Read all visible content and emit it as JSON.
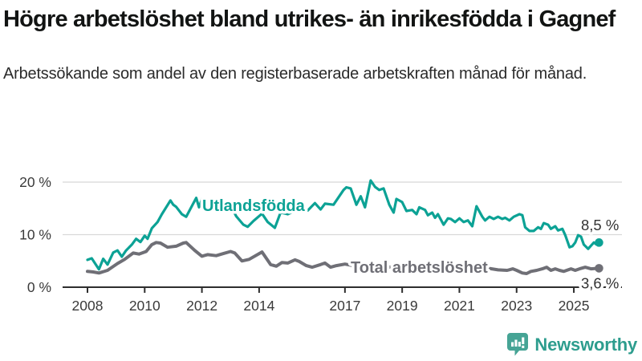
{
  "header": {
    "title": "Högre arbetslöshet bland utrikes- än inrikesfödda i Gagnef",
    "subtitle": "Arbetssökande som andel av den registerbaserade arbetskraften månad för månad."
  },
  "footer": {
    "brand": "Newsworthy"
  },
  "colors": {
    "grid": "#d8d8d8",
    "axis": "#2e2e2e",
    "tick_label": "#3a3a3a",
    "value_label": "#333333",
    "brand_icon": "#46a495",
    "brand_text": "#2d9d8e"
  },
  "chart_data": {
    "type": "line",
    "title": "Högre arbetslöshet bland utrikes- än inrikesfödda i Gagnef",
    "xlabel": "",
    "ylabel": "",
    "xlim": [
      2008,
      2026
    ],
    "ylim": [
      0,
      20
    ],
    "grid": "horizontal",
    "legend_position": "inline-labels",
    "x_ticks": [
      {
        "year": 2008,
        "label": "2008"
      },
      {
        "year": 2010,
        "label": "2010"
      },
      {
        "year": 2012,
        "label": "2012"
      },
      {
        "year": 2014,
        "label": "2014"
      },
      {
        "year": 2017,
        "label": "2017"
      },
      {
        "year": 2019,
        "label": "2019"
      },
      {
        "year": 2021,
        "label": "2021"
      },
      {
        "year": 2023,
        "label": "2023"
      },
      {
        "year": 2025,
        "label": "2025"
      }
    ],
    "y_ticks": [
      {
        "value": 0,
        "label": "0 %"
      },
      {
        "value": 10,
        "label": "10 %"
      },
      {
        "value": 20,
        "label": "20 %"
      }
    ],
    "series": [
      {
        "id": "utlandsfodda",
        "name": "Utlandsfödda",
        "color": "#0ca295",
        "end_label": "8,5 %",
        "end_value": 8.5,
        "points": [
          [
            2008.0,
            5.2
          ],
          [
            2008.15,
            5.5
          ],
          [
            2008.4,
            3.4
          ],
          [
            2008.55,
            5.4
          ],
          [
            2008.7,
            4.3
          ],
          [
            2008.9,
            6.6
          ],
          [
            2009.05,
            7.0
          ],
          [
            2009.2,
            5.8
          ],
          [
            2009.35,
            7.0
          ],
          [
            2009.55,
            8.1
          ],
          [
            2009.7,
            9.2
          ],
          [
            2009.85,
            8.6
          ],
          [
            2010.0,
            9.8
          ],
          [
            2010.1,
            9.2
          ],
          [
            2010.25,
            11.2
          ],
          [
            2010.45,
            12.4
          ],
          [
            2010.6,
            13.9
          ],
          [
            2010.9,
            16.5
          ],
          [
            2011.0,
            15.7
          ],
          [
            2011.1,
            15.3
          ],
          [
            2011.3,
            13.9
          ],
          [
            2011.45,
            13.4
          ],
          [
            2011.8,
            17.0
          ],
          [
            2011.9,
            15.2
          ],
          [
            2012.0,
            16.8
          ],
          [
            2012.15,
            15.0
          ],
          [
            2012.35,
            14.6
          ],
          [
            2012.6,
            15.3
          ],
          [
            2012.95,
            16.1
          ],
          [
            2013.2,
            13.5
          ],
          [
            2013.45,
            11.9
          ],
          [
            2013.6,
            11.5
          ],
          [
            2013.8,
            12.6
          ],
          [
            2014.1,
            14.0
          ],
          [
            2014.3,
            12.4
          ],
          [
            2014.55,
            11.3
          ],
          [
            2014.75,
            14.2
          ],
          [
            2015.0,
            13.9
          ],
          [
            2015.2,
            14.4
          ],
          [
            2015.5,
            14.9
          ],
          [
            2015.7,
            14.6
          ],
          [
            2015.95,
            16.0
          ],
          [
            2016.15,
            14.8
          ],
          [
            2016.3,
            15.9
          ],
          [
            2016.6,
            15.7
          ],
          [
            2016.95,
            18.5
          ],
          [
            2017.05,
            19.0
          ],
          [
            2017.2,
            18.8
          ],
          [
            2017.4,
            15.7
          ],
          [
            2017.55,
            17.3
          ],
          [
            2017.7,
            15.2
          ],
          [
            2017.9,
            20.3
          ],
          [
            2018.05,
            19.1
          ],
          [
            2018.2,
            18.5
          ],
          [
            2018.35,
            18.8
          ],
          [
            2018.55,
            15.7
          ],
          [
            2018.7,
            14.2
          ],
          [
            2018.8,
            16.8
          ],
          [
            2019.0,
            16.2
          ],
          [
            2019.15,
            14.5
          ],
          [
            2019.35,
            14.7
          ],
          [
            2019.5,
            13.9
          ],
          [
            2019.6,
            15.2
          ],
          [
            2019.8,
            14.7
          ],
          [
            2019.9,
            13.7
          ],
          [
            2020.05,
            14.2
          ],
          [
            2020.15,
            13.2
          ],
          [
            2020.25,
            13.9
          ],
          [
            2020.45,
            11.9
          ],
          [
            2020.6,
            13.1
          ],
          [
            2020.7,
            13.0
          ],
          [
            2020.85,
            12.4
          ],
          [
            2021.0,
            13.1
          ],
          [
            2021.15,
            12.4
          ],
          [
            2021.3,
            12.7
          ],
          [
            2021.45,
            11.6
          ],
          [
            2021.6,
            15.4
          ],
          [
            2021.8,
            13.4
          ],
          [
            2021.9,
            12.7
          ],
          [
            2022.05,
            13.4
          ],
          [
            2022.2,
            13.0
          ],
          [
            2022.35,
            13.4
          ],
          [
            2022.5,
            13.0
          ],
          [
            2022.6,
            13.2
          ],
          [
            2022.75,
            12.7
          ],
          [
            2022.9,
            13.4
          ],
          [
            2023.1,
            13.9
          ],
          [
            2023.2,
            13.7
          ],
          [
            2023.3,
            11.4
          ],
          [
            2023.45,
            10.7
          ],
          [
            2023.6,
            10.7
          ],
          [
            2023.75,
            11.4
          ],
          [
            2023.85,
            11.1
          ],
          [
            2023.95,
            12.2
          ],
          [
            2024.1,
            11.9
          ],
          [
            2024.2,
            11.1
          ],
          [
            2024.35,
            11.6
          ],
          [
            2024.45,
            10.8
          ],
          [
            2024.6,
            11.1
          ],
          [
            2024.7,
            9.9
          ],
          [
            2024.85,
            7.6
          ],
          [
            2024.95,
            7.8
          ],
          [
            2025.05,
            8.5
          ],
          [
            2025.15,
            9.9
          ],
          [
            2025.25,
            9.6
          ],
          [
            2025.35,
            8.1
          ],
          [
            2025.5,
            7.3
          ],
          [
            2025.55,
            7.6
          ],
          [
            2025.7,
            8.5
          ],
          [
            2025.8,
            8.1
          ],
          [
            2025.88,
            8.5
          ]
        ]
      },
      {
        "id": "total-arbetsloshet",
        "name": "Total arbetslöshet",
        "color": "#6f6f76",
        "end_label": "3,6 %",
        "end_value": 3.6,
        "points": [
          [
            2008.0,
            3.0
          ],
          [
            2008.2,
            2.9
          ],
          [
            2008.4,
            2.7
          ],
          [
            2008.7,
            3.2
          ],
          [
            2009.05,
            4.5
          ],
          [
            2009.3,
            5.3
          ],
          [
            2009.6,
            6.5
          ],
          [
            2009.8,
            6.3
          ],
          [
            2010.05,
            6.8
          ],
          [
            2010.25,
            8.1
          ],
          [
            2010.4,
            8.5
          ],
          [
            2010.55,
            8.4
          ],
          [
            2010.8,
            7.6
          ],
          [
            2011.1,
            7.8
          ],
          [
            2011.35,
            8.4
          ],
          [
            2011.45,
            8.5
          ],
          [
            2011.75,
            7.0
          ],
          [
            2012.0,
            5.9
          ],
          [
            2012.2,
            6.2
          ],
          [
            2012.5,
            6.0
          ],
          [
            2012.75,
            6.4
          ],
          [
            2013.0,
            6.8
          ],
          [
            2013.15,
            6.5
          ],
          [
            2013.4,
            5.0
          ],
          [
            2013.65,
            5.3
          ],
          [
            2014.1,
            6.7
          ],
          [
            2014.4,
            4.3
          ],
          [
            2014.6,
            4.0
          ],
          [
            2014.8,
            4.7
          ],
          [
            2015.0,
            4.6
          ],
          [
            2015.25,
            5.2
          ],
          [
            2015.4,
            4.9
          ],
          [
            2015.65,
            4.1
          ],
          [
            2015.85,
            3.8
          ],
          [
            2016.15,
            4.3
          ],
          [
            2016.3,
            4.6
          ],
          [
            2016.5,
            3.8
          ],
          [
            2016.7,
            4.1
          ],
          [
            2017.0,
            4.4
          ],
          [
            2017.3,
            4.1
          ],
          [
            2017.6,
            3.8
          ],
          [
            2017.9,
            4.0
          ],
          [
            2018.2,
            4.2
          ],
          [
            2018.6,
            3.8
          ],
          [
            2019.0,
            3.6
          ],
          [
            2019.4,
            4.0
          ],
          [
            2019.8,
            3.7
          ],
          [
            2020.1,
            4.3
          ],
          [
            2020.45,
            4.6
          ],
          [
            2020.8,
            4.4
          ],
          [
            2021.2,
            4.1
          ],
          [
            2021.6,
            3.8
          ],
          [
            2022.0,
            3.6
          ],
          [
            2022.35,
            3.3
          ],
          [
            2022.67,
            3.2
          ],
          [
            2022.87,
            3.5
          ],
          [
            2023.0,
            3.2
          ],
          [
            2023.2,
            2.7
          ],
          [
            2023.35,
            2.6
          ],
          [
            2023.5,
            3.0
          ],
          [
            2023.7,
            3.2
          ],
          [
            2023.9,
            3.5
          ],
          [
            2024.05,
            3.8
          ],
          [
            2024.2,
            3.2
          ],
          [
            2024.35,
            3.5
          ],
          [
            2024.5,
            3.2
          ],
          [
            2024.65,
            3.0
          ],
          [
            2024.75,
            3.2
          ],
          [
            2024.9,
            3.5
          ],
          [
            2025.05,
            3.2
          ],
          [
            2025.2,
            3.5
          ],
          [
            2025.4,
            3.8
          ],
          [
            2025.6,
            3.5
          ],
          [
            2025.88,
            3.6
          ]
        ]
      }
    ]
  }
}
